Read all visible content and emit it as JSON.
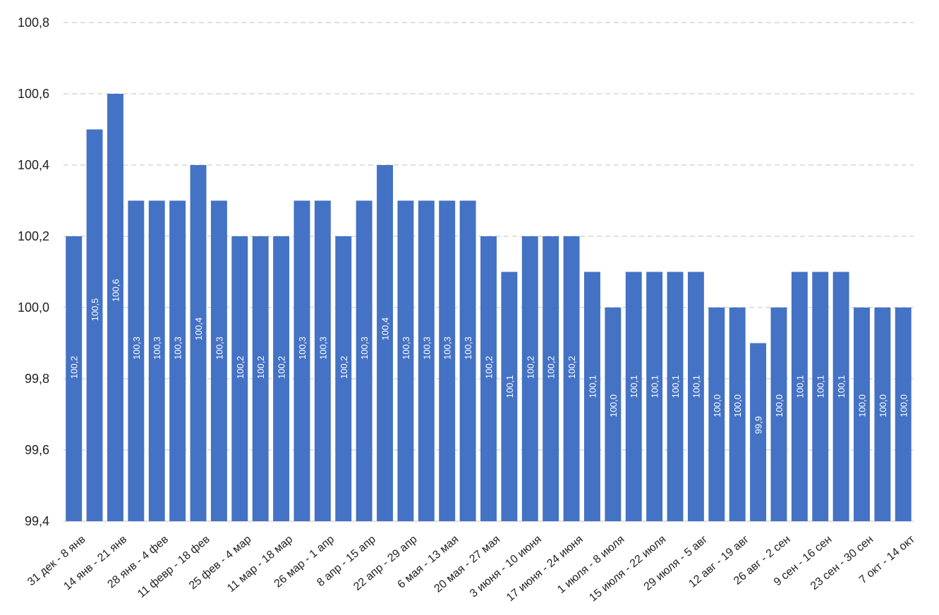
{
  "chart_data": {
    "type": "bar",
    "title": "",
    "xlabel": "",
    "ylabel": "",
    "ylim": [
      99.4,
      100.8
    ],
    "yticks": [
      99.4,
      99.6,
      99.8,
      100.0,
      100.2,
      100.4,
      100.6,
      100.8
    ],
    "ytick_labels": [
      "99,4",
      "99,6",
      "99,8",
      "100,0",
      "100,2",
      "100,4",
      "100,6",
      "100,8"
    ],
    "grid": true,
    "legend": "none",
    "bar_color": "#4472C4",
    "categories": [
      "31 дек - 8 янв",
      "",
      "14 янв - 21 янв",
      "",
      "28 янв - 4 фев",
      "",
      "11 февр - 18 фев",
      "",
      "25 фев - 4 мар",
      "",
      "11 мар - 18 мар",
      "",
      "26 мар - 1 апр",
      "",
      "8 апр - 15 апр",
      "",
      "22 апр - 29 апр",
      "",
      "6 мая - 13 мая",
      "",
      "20 мая - 27 мая",
      "",
      "3 июня - 10 июня",
      "",
      "17 июня - 24 июня",
      "",
      "1 июля - 8 июля",
      "",
      "15 июля - 22 июля",
      "",
      "29 июля - 5 авг",
      "",
      "12 авг - 19 авг",
      "",
      "26 авг - 2 сен",
      "",
      "9 сен - 16 сен",
      "",
      "23 сен - 30 сен",
      "",
      "7 окт - 14 окт"
    ],
    "values": [
      100.2,
      100.5,
      100.6,
      100.3,
      100.3,
      100.3,
      100.4,
      100.3,
      100.2,
      100.2,
      100.2,
      100.3,
      100.3,
      100.2,
      100.3,
      100.4,
      100.3,
      100.3,
      100.3,
      100.3,
      100.2,
      100.1,
      100.2,
      100.2,
      100.2,
      100.1,
      100.0,
      100.1,
      100.1,
      100.1,
      100.1,
      100.0,
      100.0,
      99.9,
      100.0,
      100.1,
      100.1,
      100.1,
      100.0,
      100.0,
      100.0
    ],
    "data_labels": [
      "100,2",
      "100,5",
      "100,6",
      "100,3",
      "100,3",
      "100,3",
      "100,4",
      "100,3",
      "100,2",
      "100,2",
      "100,2",
      "100,3",
      "100,3",
      "100,2",
      "100,3",
      "100,4",
      "100,3",
      "100,3",
      "100,3",
      "100,3",
      "100,2",
      "100,1",
      "100,2",
      "100,2",
      "100,2",
      "100,1",
      "100,0",
      "100,1",
      "100,1",
      "100,1",
      "100,1",
      "100,0",
      "100,0",
      "99,9",
      "100,0",
      "100,1",
      "100,1",
      "100,1",
      "100,0",
      "100,0",
      "100,0"
    ]
  }
}
